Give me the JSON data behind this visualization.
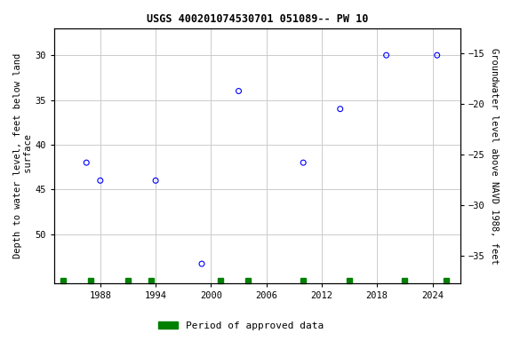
{
  "title": "USGS 400201074530701 051089-- PW 10",
  "scatter_x": [
    1986.5,
    1988,
    1994,
    1999,
    2003,
    2010,
    2014,
    2019,
    2024.5
  ],
  "scatter_y": [
    42,
    44,
    44,
    53.3,
    34,
    42,
    36,
    30,
    30
  ],
  "scatter_color": "#0000ff",
  "ylabel_left": "Depth to water level, feet below land\n surface",
  "ylabel_right": "Groundwater level above NAVD 1988, feet",
  "xlim": [
    1983,
    2027
  ],
  "ylim_left": [
    55.5,
    27
  ],
  "ylim_right": [
    -37.7,
    -12.5
  ],
  "xticks": [
    1988,
    1994,
    2000,
    2006,
    2012,
    2018,
    2024
  ],
  "yticks_left": [
    30,
    35,
    40,
    45,
    50
  ],
  "yticks_right": [
    -15,
    -20,
    -25,
    -30,
    -35
  ],
  "grid_color": "#cccccc",
  "background_color": "#ffffff",
  "legend_label": "Period of approved data",
  "legend_color": "#008000",
  "approved_x": [
    1984,
    1987,
    1991,
    1993.5,
    2001,
    2004,
    2010,
    2015,
    2021,
    2025.5
  ]
}
